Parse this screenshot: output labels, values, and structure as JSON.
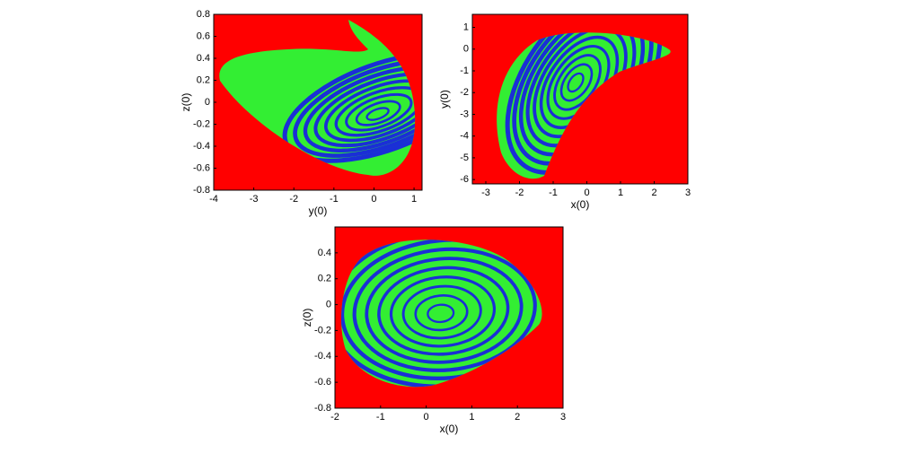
{
  "chart_data": [
    {
      "type": "basin",
      "xlabel": "y(0)",
      "ylabel": "z(0)",
      "xlim": [
        -4,
        1.2
      ],
      "ylim": [
        -0.8,
        0.8
      ],
      "xticks": [
        -4,
        -3,
        -2,
        -1,
        0,
        1
      ],
      "yticks": [
        -0.8,
        -0.6,
        -0.4,
        -0.2,
        0,
        0.2,
        0.4,
        0.6,
        0.8
      ]
    },
    {
      "type": "basin",
      "xlabel": "x(0)",
      "ylabel": "y(0)",
      "xlim": [
        -3.4,
        3
      ],
      "ylim": [
        -6.2,
        1.6
      ],
      "xticks": [
        -3,
        -2,
        -1,
        0,
        1,
        2,
        3
      ],
      "yticks": [
        -6,
        -5,
        -4,
        -3,
        -2,
        -1,
        0,
        1
      ]
    },
    {
      "type": "basin",
      "xlabel": "x(0)",
      "ylabel": "z(0)",
      "xlim": [
        -2,
        3
      ],
      "ylim": [
        -0.8,
        0.6
      ],
      "xticks": [
        -2,
        -1,
        0,
        1,
        2,
        3
      ],
      "yticks": [
        -0.8,
        -0.6,
        -0.4,
        -0.2,
        0,
        0.2,
        0.4
      ]
    }
  ]
}
